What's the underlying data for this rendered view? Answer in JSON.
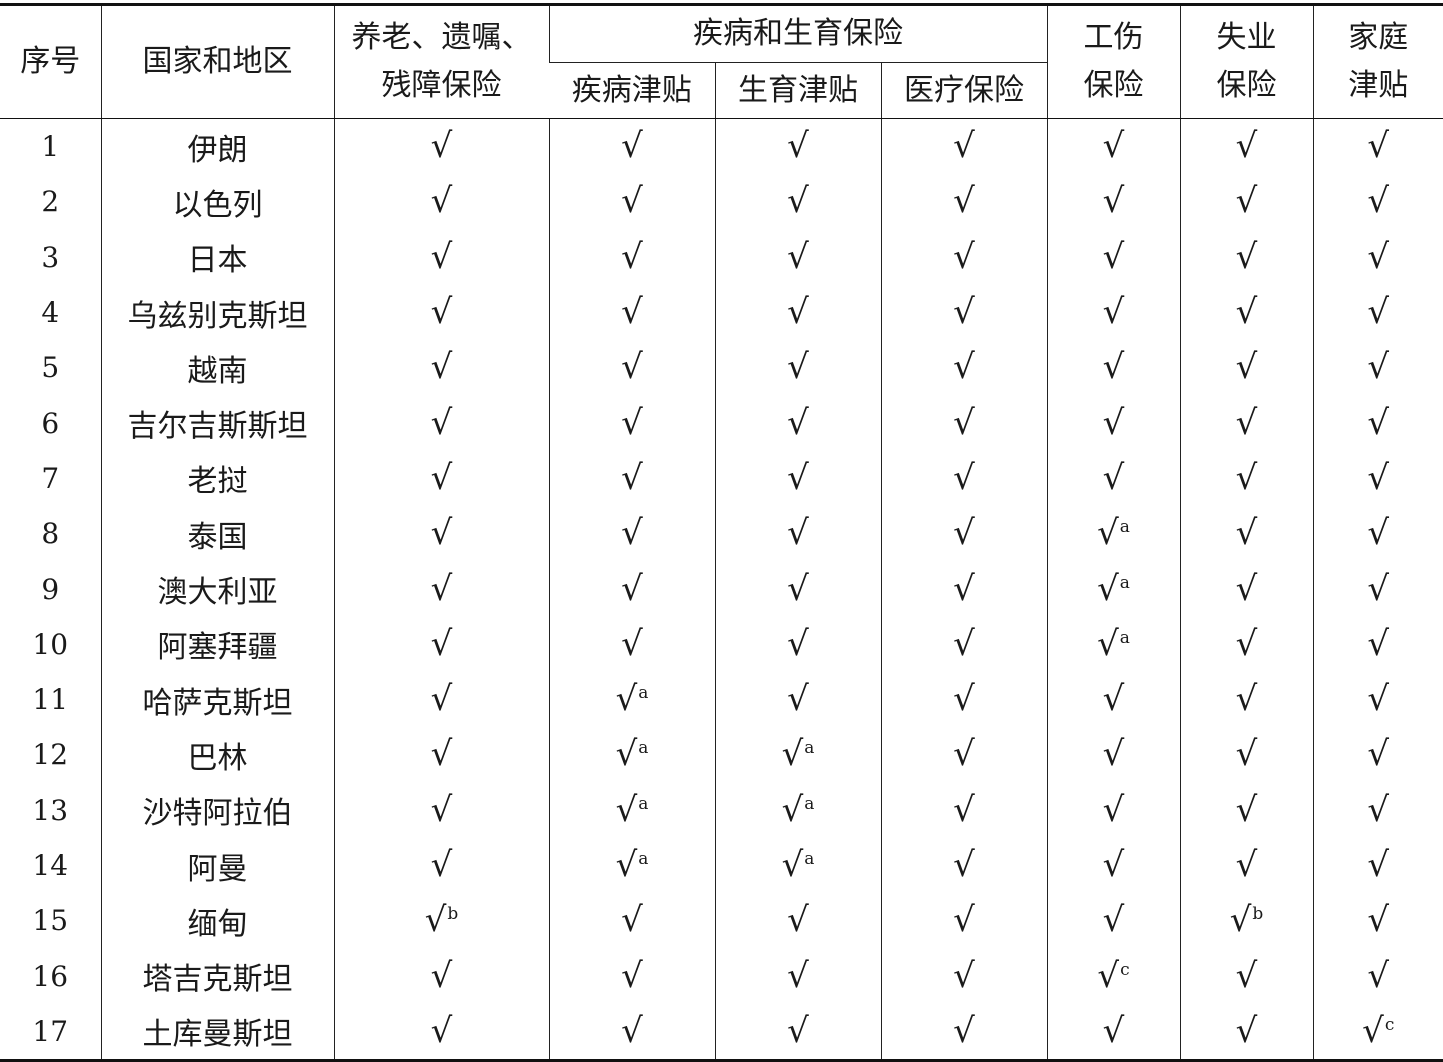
{
  "headers": {
    "no": "序号",
    "country": "国家和地区",
    "pension": [
      "养老、遗嘱、",
      "残障保险"
    ],
    "sickness_group": "疾病和生育保险",
    "sickness_allowance": "疾病津贴",
    "maternity_allowance": "生育津贴",
    "medical_insurance": "医疗保险",
    "work_injury": [
      "工伤",
      "保险"
    ],
    "unemployment": [
      "失业",
      "保险"
    ],
    "family_allowance": [
      "家庭",
      "津贴"
    ]
  },
  "check_symbol": "√",
  "rows": [
    {
      "no": "1",
      "country": "伊朗",
      "marks": [
        "",
        "",
        "",
        "",
        "",
        "",
        ""
      ]
    },
    {
      "no": "2",
      "country": "以色列",
      "marks": [
        "",
        "",
        "",
        "",
        "",
        "",
        ""
      ]
    },
    {
      "no": "3",
      "country": "日本",
      "marks": [
        "",
        "",
        "",
        "",
        "",
        "",
        ""
      ]
    },
    {
      "no": "4",
      "country": "乌兹别克斯坦",
      "marks": [
        "",
        "",
        "",
        "",
        "",
        "",
        ""
      ]
    },
    {
      "no": "5",
      "country": "越南",
      "marks": [
        "",
        "",
        "",
        "",
        "",
        "",
        ""
      ]
    },
    {
      "no": "6",
      "country": "吉尔吉斯斯坦",
      "marks": [
        "",
        "",
        "",
        "",
        "",
        "",
        ""
      ]
    },
    {
      "no": "7",
      "country": "老挝",
      "marks": [
        "",
        "",
        "",
        "",
        "",
        "",
        ""
      ]
    },
    {
      "no": "8",
      "country": "泰国",
      "marks": [
        "",
        "",
        "",
        "",
        "a",
        "",
        ""
      ]
    },
    {
      "no": "9",
      "country": "澳大利亚",
      "marks": [
        "",
        "",
        "",
        "",
        "a",
        "",
        ""
      ]
    },
    {
      "no": "10",
      "country": "阿塞拜疆",
      "marks": [
        "",
        "",
        "",
        "",
        "a",
        "",
        ""
      ]
    },
    {
      "no": "11",
      "country": "哈萨克斯坦",
      "marks": [
        "",
        "a",
        "",
        "",
        "",
        "",
        ""
      ]
    },
    {
      "no": "12",
      "country": "巴林",
      "marks": [
        "",
        "a",
        "a",
        "",
        "",
        "",
        ""
      ]
    },
    {
      "no": "13",
      "country": "沙特阿拉伯",
      "marks": [
        "",
        "a",
        "a",
        "",
        "",
        "",
        ""
      ]
    },
    {
      "no": "14",
      "country": "阿曼",
      "marks": [
        "",
        "a",
        "a",
        "",
        "",
        "",
        ""
      ]
    },
    {
      "no": "15",
      "country": "缅甸",
      "marks": [
        "b",
        "",
        "",
        "",
        "",
        "b",
        ""
      ]
    },
    {
      "no": "16",
      "country": "塔吉克斯坦",
      "marks": [
        "",
        "",
        "",
        "",
        "c",
        "",
        ""
      ]
    },
    {
      "no": "17",
      "country": "土库曼斯坦",
      "marks": [
        "",
        "",
        "",
        "",
        "",
        "",
        "c"
      ]
    }
  ]
}
